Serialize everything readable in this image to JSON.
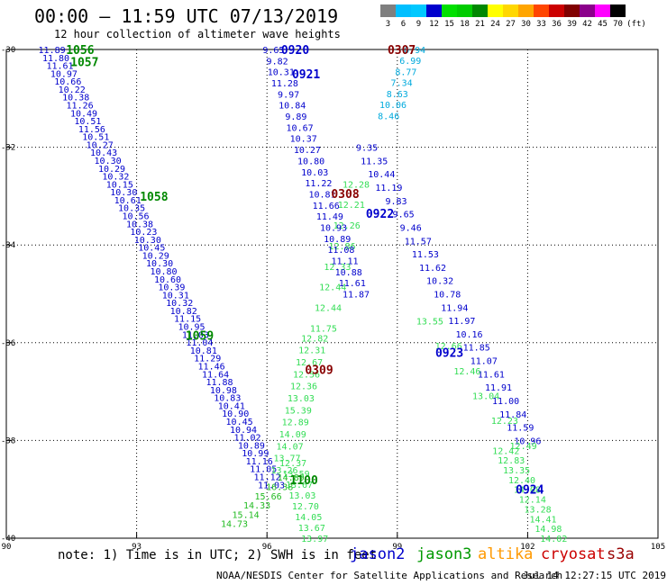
{
  "title": "00:00 — 11:59 UTC 07/13/2019",
  "subtitle": "12 hour collection of altimeter wave heights",
  "legend": {
    "unit": "(ft)",
    "items": [
      {
        "label": "3",
        "color": "#7f7f7f"
      },
      {
        "label": "6",
        "color": "#00bfff"
      },
      {
        "label": "9",
        "color": "#00c8ff"
      },
      {
        "label": "12",
        "color": "#0000cd"
      },
      {
        "label": "15",
        "color": "#00e000"
      },
      {
        "label": "18",
        "color": "#00cc00"
      },
      {
        "label": "21",
        "color": "#008800"
      },
      {
        "label": "24",
        "color": "#ffff00"
      },
      {
        "label": "27",
        "color": "#ffd700"
      },
      {
        "label": "30",
        "color": "#ffa500"
      },
      {
        "label": "33",
        "color": "#ff4500"
      },
      {
        "label": "36",
        "color": "#cc0000"
      },
      {
        "label": "39",
        "color": "#800000"
      },
      {
        "label": "42",
        "color": "#8b008b"
      },
      {
        "label": "45",
        "color": "#ff00ff"
      },
      {
        "label": "70",
        "color": "#000000"
      }
    ]
  },
  "note": "note: 1) Time is in UTC; 2) SWH is in feet",
  "satellites": [
    {
      "name": "jason2",
      "color": "#0000cc"
    },
    {
      "name": "jason3",
      "color": "#009900"
    },
    {
      "name": "altika",
      "color": "#ff9900"
    },
    {
      "name": "cryosat",
      "color": "#cc0000"
    },
    {
      "name": "s3a",
      "color": "#990000"
    }
  ],
  "credit": "NOAA/NESDIS Center for Satellite Applications and Research",
  "timestamp": "Jul 14 12:27:15 UTC 2019",
  "map_axes": {
    "lon_range": [
      90,
      105
    ],
    "lat_range": [
      -40,
      -30
    ],
    "lon_ticks": [
      "90",
      "93",
      "96",
      "99",
      "102",
      "105"
    ],
    "lat_ticks": [
      "-30",
      "-32",
      "-34",
      "-36",
      "-38",
      "-40"
    ]
  },
  "colors": {
    "track_blue": "#0000cc",
    "track_green": "#22bb22",
    "track_lightgreen": "#33dd55",
    "track_cyan": "#00aadd",
    "pass_darkgreen": "#008800",
    "pass_blue": "#0000cc",
    "pass_red": "#880000"
  },
  "pass_labels": [
    {
      "text": "1056",
      "lon": 91.7,
      "lat": -30.0,
      "color": "pass_darkgreen"
    },
    {
      "text": "1057",
      "lon": 91.8,
      "lat": -30.25,
      "color": "pass_darkgreen"
    },
    {
      "text": "1058",
      "lon": 93.4,
      "lat": -33.0,
      "color": "pass_darkgreen"
    },
    {
      "text": "1059",
      "lon": 94.45,
      "lat": -35.85,
      "color": "pass_darkgreen"
    },
    {
      "text": "1100",
      "lon": 96.85,
      "lat": -38.8,
      "color": "pass_darkgreen"
    },
    {
      "text": "0920",
      "lon": 96.65,
      "lat": -30.0,
      "color": "pass_blue"
    },
    {
      "text": "0921",
      "lon": 96.9,
      "lat": -30.5,
      "color": "pass_blue"
    },
    {
      "text": "0922",
      "lon": 98.6,
      "lat": -33.35,
      "color": "pass_blue"
    },
    {
      "text": "0923",
      "lon": 100.2,
      "lat": -36.2,
      "color": "pass_blue"
    },
    {
      "text": "0924",
      "lon": 102.05,
      "lat": -39.0,
      "color": "pass_blue"
    },
    {
      "text": "0307",
      "lon": 99.1,
      "lat": -30.0,
      "color": "pass_red"
    },
    {
      "text": "0308",
      "lon": 97.8,
      "lat": -32.95,
      "color": "pass_red"
    },
    {
      "text": "0309",
      "lon": 97.2,
      "lat": -36.55,
      "color": "pass_red"
    }
  ],
  "tracks": [
    {
      "color": "track_blue",
      "start": [
        91.05,
        -30.0
      ],
      "end": [
        96.1,
        -38.9
      ],
      "values": [
        "11.89",
        "11.80",
        "11.61",
        "10.97",
        "10.66",
        "10.22",
        "10.38",
        "11.26",
        "10.49",
        "10.51",
        "11.56",
        "10.51",
        "10.27",
        "10.43",
        "10.30",
        "10.29",
        "10.32",
        "10.15",
        "10.30",
        "10.61",
        "10.35",
        "10.56",
        "10.38",
        "10.23",
        "10.30",
        "10.45",
        "10.29",
        "10.30",
        "10.80",
        "10.60",
        "10.39",
        "10.31",
        "10.32",
        "10.82",
        "11.15",
        "10.95",
        "11.03",
        "11.04",
        "10.81",
        "11.29",
        "11.46",
        "11.64",
        "11.88",
        "10.98",
        "10.83",
        "10.41",
        "10.90",
        "10.45",
        "10.94",
        "11.02",
        "10.89",
        "10.99",
        "11.16",
        "11.05",
        "11.12",
        "11.03"
      ]
    },
    {
      "color": "track_green",
      "start": [
        96.55,
        -38.75
      ],
      "end": [
        95.25,
        -39.7
      ],
      "values": [
        "14.89",
        "16.38",
        "15.66",
        "14.33",
        "15.14",
        "14.73"
      ]
    },
    {
      "color": "track_lightgreen",
      "start": [
        96.6,
        -38.45
      ],
      "end": [
        97.1,
        -40.0
      ],
      "values": [
        "12.37",
        "13.59",
        "13.67",
        "13.03",
        "12.70",
        "14.05",
        "13.67",
        "13.97"
      ]
    },
    {
      "color": "track_lightgreen",
      "start": [
        97.1,
        -35.9
      ],
      "end": [
        96.4,
        -38.6
      ],
      "values": [
        "12.82",
        "12.31",
        "12.67",
        "12.56",
        "12.36",
        "13.03",
        "15.39",
        "12.89",
        "14.09",
        "14.07",
        "13.77",
        "13.26"
      ]
    },
    {
      "color": "track_lightgreen",
      "start": [
        98.05,
        -32.75
      ],
      "end": [
        97.3,
        -35.7
      ],
      "values": [
        "12.28",
        "12.21",
        "12.26",
        "12.86",
        "12.33",
        "12.44",
        "12.44",
        "11.75"
      ]
    },
    {
      "color": "track_blue",
      "start": [
        96.15,
        -30.0
      ],
      "end": [
        98.05,
        -35.0
      ],
      "values": [
        "9.65",
        "9.82",
        "10.31",
        "11.28",
        "9.97",
        "10.84",
        "9.89",
        "10.67",
        "10.37",
        "10.27",
        "10.80",
        "10.03",
        "11.22",
        "10.81",
        "11.66",
        "11.49",
        "10.93",
        "10.89",
        "11.08",
        "11.11",
        "10.88",
        "11.61",
        "11.87"
      ]
    },
    {
      "color": "track_blue",
      "start": [
        98.3,
        -32.0
      ],
      "end": [
        102.0,
        -38.0
      ],
      "values": [
        "9.35",
        "11.35",
        "10.44",
        "11.19",
        "9.83",
        "9.65",
        "9.46",
        "11.57",
        "11.53",
        "11.62",
        "10.32",
        "10.78",
        "11.94",
        "11.97",
        "10.16",
        "11.85",
        "11.07",
        "11.61",
        "11.91",
        "11.00",
        "11.84",
        "11.59",
        "10.96"
      ]
    },
    {
      "color": "track_lightgreen",
      "start": [
        99.75,
        -35.55
      ],
      "end": [
        101.9,
        -38.1
      ],
      "values": [
        "13.55",
        "12.66",
        "12.46",
        "13.04",
        "12.23",
        "12.49"
      ]
    },
    {
      "color": "track_lightgreen",
      "start": [
        101.5,
        -38.2
      ],
      "end": [
        102.6,
        -40.0
      ],
      "values": [
        "12.42",
        "12.83",
        "13.35",
        "12.40",
        "14.08",
        "12.14",
        "13.28",
        "14.41",
        "14.98",
        "14.02"
      ]
    },
    {
      "color": "track_cyan",
      "start": [
        99.4,
        -30.0
      ],
      "end": [
        98.8,
        -31.35
      ],
      "values": [
        "6.94",
        "6.99",
        "8.77",
        "7.34",
        "8.63",
        "10.06",
        "8.46"
      ]
    }
  ]
}
